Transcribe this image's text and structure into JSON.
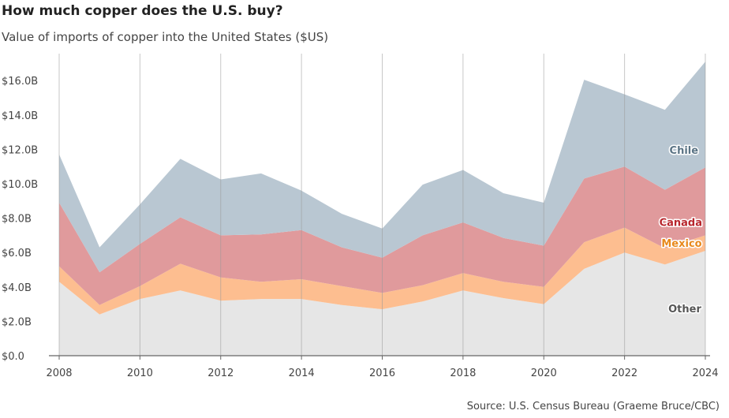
{
  "title": "How much copper does the U.S. buy?",
  "subtitle": "Value of imports of copper into the United States ($US)",
  "source": "Source: U.S. Census Bureau (Graeme Bruce/CBC)",
  "chart_data": {
    "type": "area",
    "stacked": true,
    "x": [
      2008,
      2009,
      2010,
      2011,
      2012,
      2013,
      2014,
      2015,
      2016,
      2017,
      2018,
      2019,
      2020,
      2021,
      2022,
      2023,
      2024
    ],
    "xticks": [
      "2008",
      "2010",
      "2012",
      "2014",
      "2016",
      "2018",
      "2020",
      "2022",
      "2024"
    ],
    "yticks": [
      "$0.0",
      "$2.0B",
      "$4.0B",
      "$6.0B",
      "$8.0B",
      "$10.0B",
      "$12.0B",
      "$14.0B",
      "$16.0B"
    ],
    "ylim": [
      0,
      17.2
    ],
    "yunit": "billions of $US",
    "series": [
      {
        "name": "Other",
        "color": "#e6e6e6",
        "label_color": "#555555",
        "values": [
          4.3,
          2.4,
          3.3,
          3.8,
          3.2,
          3.3,
          3.3,
          2.95,
          2.7,
          3.15,
          3.8,
          3.35,
          3.0,
          5.05,
          6.0,
          5.3,
          6.1
        ]
      },
      {
        "name": "Mexico",
        "color": "#fdbe90",
        "label_color": "#e8891c",
        "values": [
          0.9,
          0.55,
          0.75,
          1.55,
          1.35,
          1.0,
          1.15,
          1.1,
          0.95,
          0.95,
          1.0,
          0.95,
          1.0,
          1.55,
          1.45,
          0.95,
          0.9
        ]
      },
      {
        "name": "Canada",
        "color": "#e09a9c",
        "label_color": "#b8262d",
        "values": [
          3.7,
          1.9,
          2.45,
          2.7,
          2.45,
          2.75,
          2.85,
          2.25,
          2.05,
          2.9,
          2.95,
          2.55,
          2.4,
          3.7,
          3.55,
          3.4,
          3.95
        ]
      },
      {
        "name": "Chile",
        "color": "#b9c7d2",
        "label_color": "#5a7384",
        "values": [
          2.8,
          1.45,
          2.3,
          3.4,
          3.25,
          3.55,
          2.3,
          1.95,
          1.7,
          2.95,
          3.05,
          2.6,
          2.5,
          5.75,
          4.2,
          4.65,
          6.15
        ]
      }
    ]
  }
}
